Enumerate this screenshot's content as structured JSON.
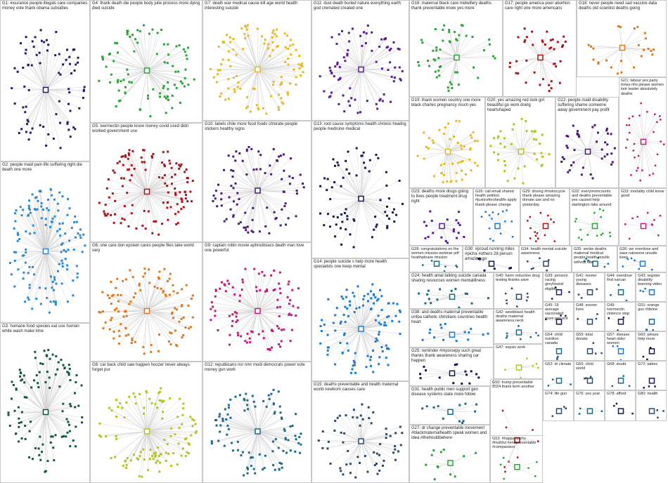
{
  "panels": [
    {
      "label": "G1: insurance people illegals care companies money vote thank obama subsidies",
      "color": "#1a1f66"
    },
    {
      "label": "G2: people maid pain life suffering right die death one more",
      "color": "#2a8ad4"
    },
    {
      "label": "G3: humane food species eat use human white wash make time",
      "color": "#13573a"
    },
    {
      "label": "G4: thank death die people body julie process more dying died suicide",
      "color": "#29a33a"
    },
    {
      "label": "G5: ivermectin people knew money covid used didn worked government use",
      "color": "#a8141c"
    },
    {
      "label": "G6: one care don epstein cares people files take world vary",
      "color": "#e0781a"
    },
    {
      "label": "G8: car back child saw happen hoozer never always forget pur",
      "color": "#b4c41c"
    },
    {
      "label": "G7: death war medical cause kill age world health interesting suicide",
      "color": "#e8b820"
    },
    {
      "label": "G10: labels chile more food foods chlorate people stickers healthy signs",
      "color": "#4a1a78"
    },
    {
      "label": "G9: captain robin movie aphrodisiacs death man love one powerful",
      "color": "#c41a7a"
    },
    {
      "label": "G12: republicans nsr nmr modi democrats power vote money gun work",
      "color": "#1a6a8a"
    },
    {
      "label": "G11: dust death buried nature everything earth god cremated created one",
      "color": "#5a1a9a"
    },
    {
      "label": "G13: root cause symptoms health chronic healing people medicine medical",
      "color": "#141a4a"
    },
    {
      "label": "G14: people suicide s help more health specialists one keep mental",
      "color": "#1a7ad4"
    },
    {
      "label": "G15: deaths preventable and health maternal world newborn causes care",
      "color": "#2a4a6a"
    },
    {
      "label": "G16: maternal black care midwifery deaths thank preventable know yes more",
      "color": "#2aa43a"
    },
    {
      "label": "G17: people america poor abortion care right one more americans",
      "color": "#a8141c"
    },
    {
      "label": "G18: never people need sad vaccine data deaths old scientist deaths going",
      "color": "#e0781a"
    },
    {
      "label": "G19: thank women country one more black charles pregnancy much yes",
      "color": "#e8b820"
    },
    {
      "label": "G20: yes amazing red look girl beautiful go work doing heartshaped",
      "color": "#b4c41c"
    },
    {
      "label": "G22: people maid disability suffering shame someone away government pay profit",
      "color": "#4a1a78"
    },
    {
      "label": "G21: labour yes party tories nhs please women keir leader absolutely deaths",
      "color": "#c41a7a"
    },
    {
      "label": "G23: deaths more drugs going to lives people treatment drug right",
      "color": "#5a1a9a"
    },
    {
      "label": "G26: call email shared health petition #justiceforshealife apply thank please change",
      "color": "#1a7ad4"
    },
    {
      "label": "G29: driving #motorcycle thank please amazing donate use and no yesterday",
      "color": "#a8141c"
    },
    {
      "label": "G32: everymomcounts and deaths preventable yes caused help startington take around",
      "color": "#2aa43a"
    },
    {
      "label": "G33: mortality child know good",
      "color": "#c41a7a"
    },
    {
      "label": "G28: congratulations on the women mission webinar pdf healthplease mission",
      "color": "#1a6a8a"
    },
    {
      "label": "G30: #proud running miles #picha #others 28 person amazing go",
      "color": "#141a4a"
    },
    {
      "label": "G34: health mental suicide awareness",
      "color": "#2a4a6a"
    },
    {
      "label": "G35: xenbe deaths maternal medical people health results without title",
      "color": "#1a6a8a"
    },
    {
      "label": "G36: we overdose and save naloxone unsafe keep",
      "color": "#1a7ad4"
    },
    {
      "label": "G24: health amal talking suicide canada sharing resources women mentalillness",
      "color": "#1a6a8a"
    },
    {
      "label": "G38: and deaths maternal preventable unfpa catholic christians countries health heart",
      "color": "#1a7ad4"
    },
    {
      "label": "G25: reminder #mpsrsepy such great thanks thank awareness sharing car happen",
      "color": "#141a4a"
    },
    {
      "label": "G31: health public men support gen disease systems state more follow",
      "color": "#1a6a8a"
    },
    {
      "label": "G27: dr change preventable movement #blackmaternalhealth speak women and idea #thehouldbehere",
      "color": "#2aa43a"
    },
    {
      "label": "G40: harm reduction drug testing thanks save",
      "color": "#2a4a6a"
    },
    {
      "label": "G42: weekblack health deaths maternal awareness neck",
      "color": "#1a6a8a"
    },
    {
      "label": "G47: sepsis work",
      "color": "#b4c41c"
    },
    {
      "label": "G50: trump preventable 2024 thank term another",
      "color": "#a8141c"
    },
    {
      "label": "G53: #happyourchy #truthful #endpreventable #compassion",
      "color": "#2aa43a"
    },
    {
      "label": "G39: pension racing greyhound eligible",
      "color": "#1a1f66"
    },
    {
      "label": "G41: ivester young diseases",
      "color": "#2a4a6a"
    },
    {
      "label": "G44: overdose find narcan",
      "color": "#1a6a8a"
    },
    {
      "label": "G43: register disability learning video",
      "color": "#1a7ad4"
    },
    {
      "label": "G45: 19 average vaccinated more percent",
      "color": "#141a4a"
    },
    {
      "label": "G48: sooner lives",
      "color": "#2a4a6a"
    },
    {
      "label": "G49: ivermectin violence stop",
      "color": "#141a4a"
    },
    {
      "label": "G51: orange gun #divine",
      "color": "#1a6a8a"
    },
    {
      "label": "G54: child nutrition canada",
      "color": "#1a6a8a"
    },
    {
      "label": "G55: total donate",
      "color": "#2a4a6a"
    },
    {
      "label": "G57: disease heart older women",
      "color": "#1a7ad4"
    },
    {
      "label": "G60: please help more",
      "color": "#141a4a"
    },
    {
      "label": "G62: dr climate",
      "color": "#1a6a8a"
    },
    {
      "label": "G65: child world",
      "color": "#2a4a6a"
    },
    {
      "label": "G68: doubt",
      "color": "#1a6a8a"
    },
    {
      "label": "G72: tables",
      "color": "#1a1f66"
    },
    {
      "label": "G74: life gun",
      "color": "#2a4a6a"
    },
    {
      "label": "G76: yes year",
      "color": "#1a6a8a"
    },
    {
      "label": "G78: afford",
      "color": "#141a4a"
    },
    {
      "label": "G80: health",
      "color": "#2a4a6a"
    }
  ]
}
